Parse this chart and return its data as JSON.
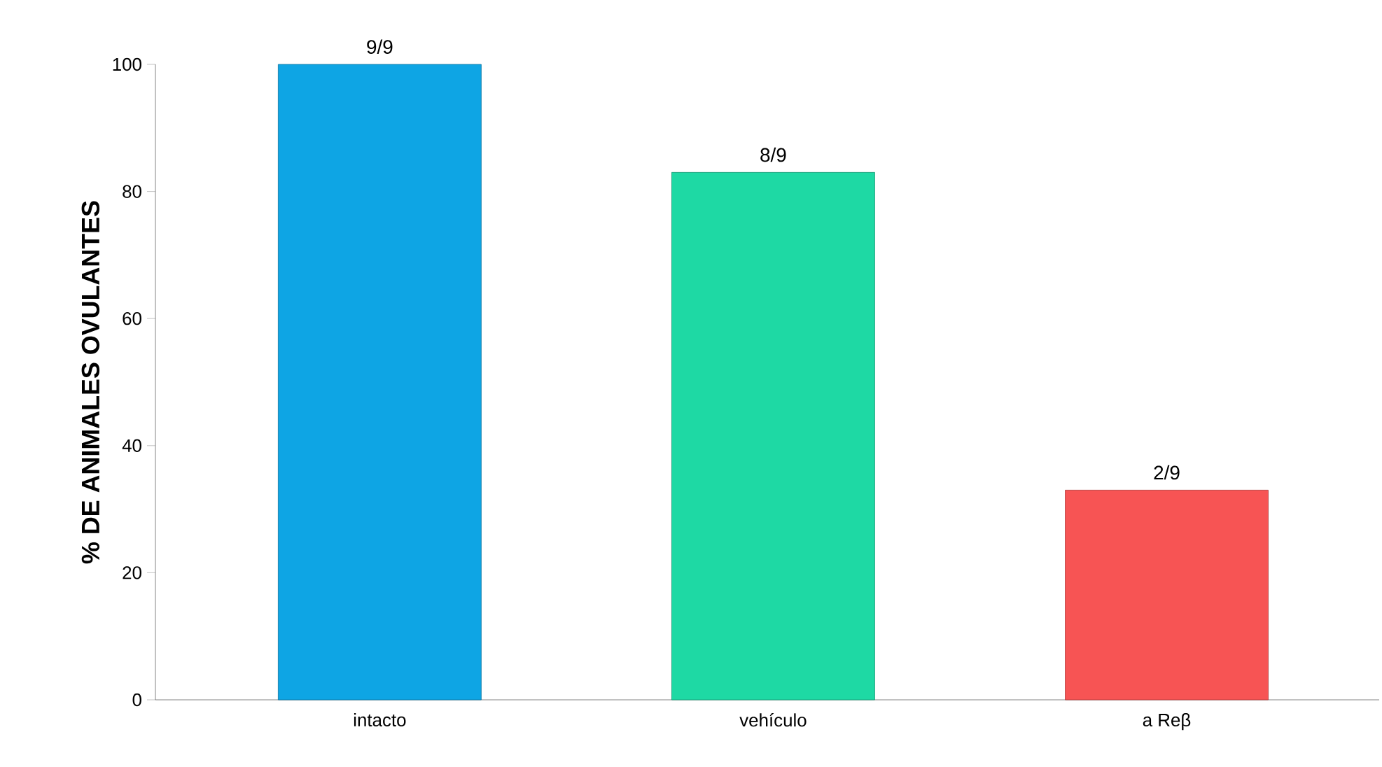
{
  "chart_data": {
    "type": "bar",
    "ylabel": "% DE ANIMALES OVULANTES",
    "categories": [
      "intacto",
      "vehículo",
      "a Reβ"
    ],
    "values": [
      100,
      83,
      33
    ],
    "colors": [
      "#0ea5e4",
      "#1ed9a4",
      "#f75454"
    ],
    "value_labels": [
      "9/9",
      "8/9",
      "2/9"
    ],
    "ylim": [
      0,
      100
    ],
    "yticks": [
      0,
      20,
      40,
      60,
      80,
      100
    ],
    "grid": false
  }
}
